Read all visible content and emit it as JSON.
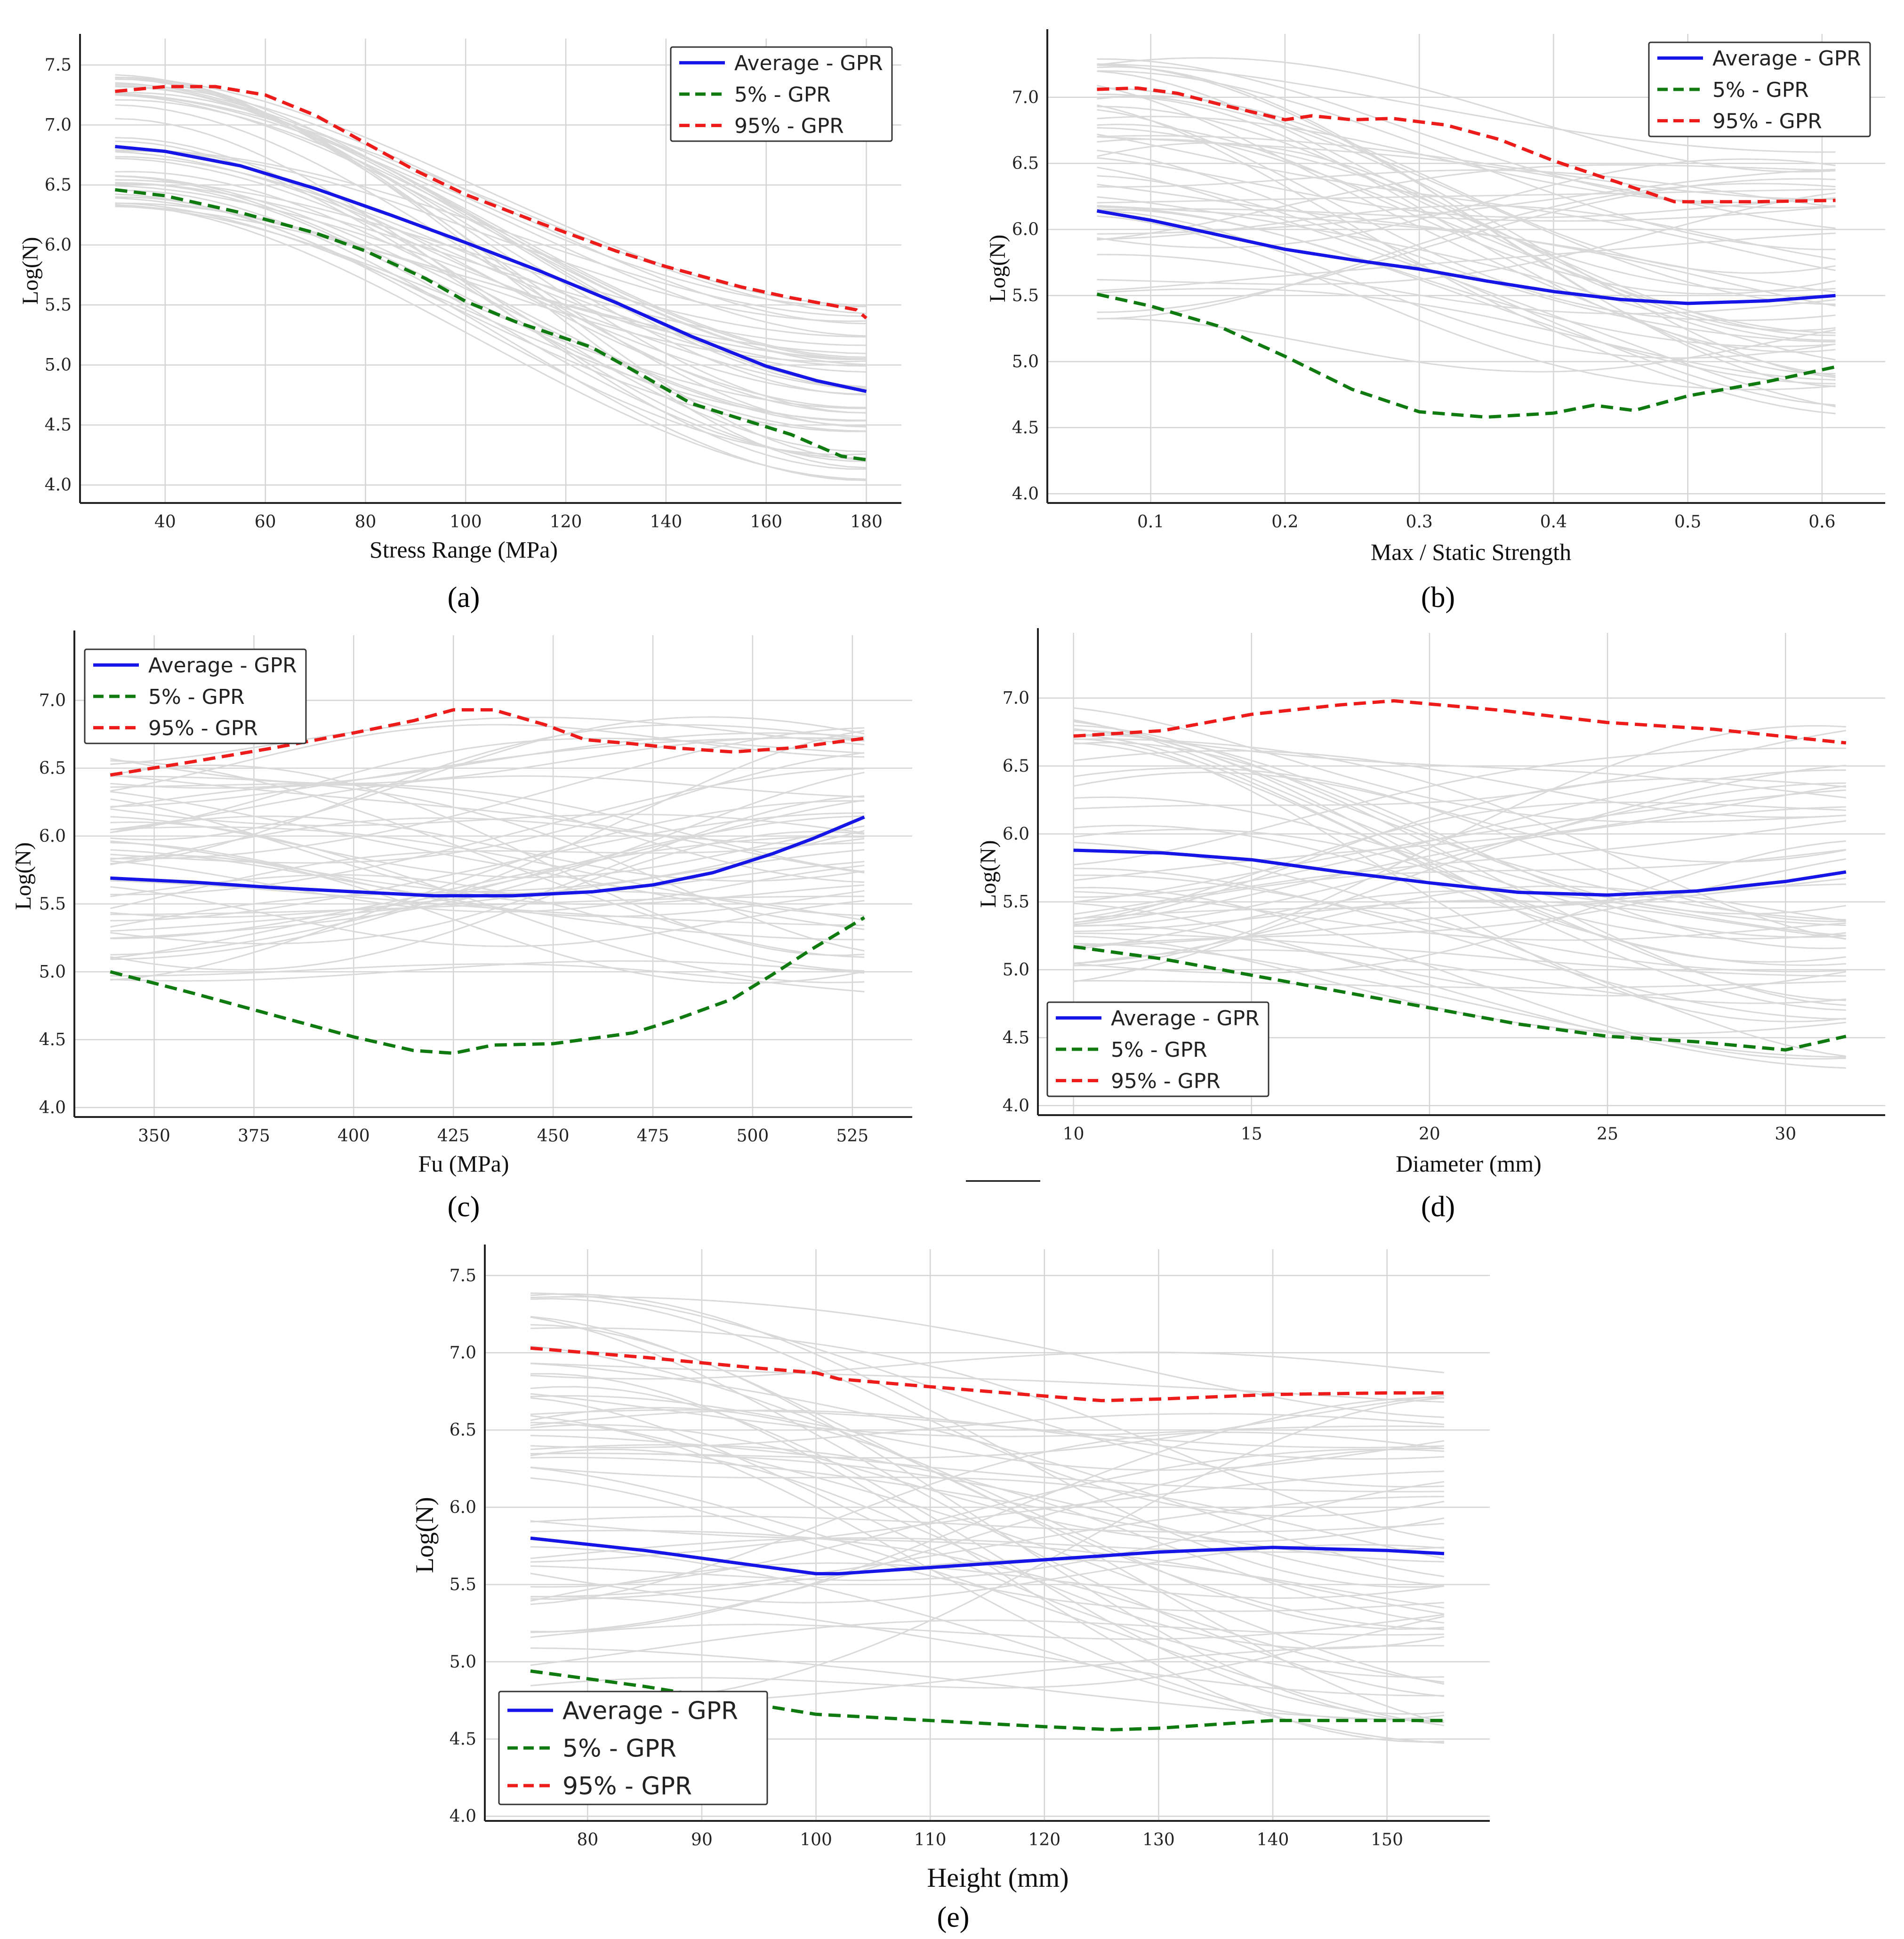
{
  "colors": {
    "average": "#1515e8",
    "p5": "#0f7a0f",
    "p95": "#ee1b1b",
    "samples": "#d9d9d9",
    "grid": "#d4d4d4",
    "axis": "#222222"
  },
  "chart_data": [
    {
      "id": "a",
      "type": "line",
      "caption": "(a)",
      "xlabel": "Stress Range (MPa)",
      "ylabel": "Log(N)",
      "xlim": [
        23,
        187
      ],
      "ylim": [
        3.85,
        7.72
      ],
      "xticks": [
        40,
        60,
        80,
        100,
        120,
        140,
        160,
        180
      ],
      "yticks": [
        4.0,
        4.5,
        5.0,
        5.5,
        6.0,
        6.5,
        7.0,
        7.5
      ],
      "legend_position": "top-right",
      "samples": {
        "count": 42,
        "y0_range": [
          6.3,
          7.5
        ],
        "y1_range": [
          4.0,
          5.5
        ],
        "wobble": 0.12
      },
      "series": [
        {
          "name": "Average - GPR",
          "style": "solid",
          "color": "average",
          "x": [
            30,
            40,
            55,
            70,
            85,
            100,
            115,
            130,
            145,
            160,
            170,
            180
          ],
          "y": [
            6.82,
            6.78,
            6.66,
            6.47,
            6.25,
            6.02,
            5.78,
            5.52,
            5.24,
            4.99,
            4.87,
            4.78
          ]
        },
        {
          "name": "5% - GPR",
          "style": "dashed",
          "color": "p5",
          "x": [
            30,
            40,
            55,
            70,
            80,
            92,
            100,
            110,
            125,
            135,
            145,
            155,
            165,
            175,
            180
          ],
          "y": [
            6.46,
            6.41,
            6.27,
            6.1,
            5.95,
            5.72,
            5.53,
            5.36,
            5.15,
            4.92,
            4.68,
            4.55,
            4.42,
            4.24,
            4.21
          ]
        },
        {
          "name": "95% - GPR",
          "style": "dashed",
          "color": "p95",
          "x": [
            30,
            40,
            50,
            60,
            70,
            80,
            90,
            100,
            115,
            130,
            140,
            155,
            165,
            178,
            180
          ],
          "y": [
            7.28,
            7.32,
            7.32,
            7.25,
            7.08,
            6.85,
            6.62,
            6.42,
            6.18,
            5.95,
            5.82,
            5.65,
            5.56,
            5.46,
            5.39
          ]
        }
      ]
    },
    {
      "id": "b",
      "type": "line",
      "caption": "(b)",
      "xlabel": "Max / Static Strength",
      "ylabel": "Log(N)",
      "xlim": [
        0.023,
        0.647
      ],
      "ylim": [
        3.93,
        7.48
      ],
      "xticks": [
        0.1,
        0.2,
        0.3,
        0.4,
        0.5,
        0.6
      ],
      "yticks": [
        4.0,
        4.5,
        5.0,
        5.5,
        6.0,
        6.5,
        7.0
      ],
      "legend_position": "top-right",
      "samples": {
        "count": 48,
        "y0_range": [
          5.3,
          7.3
        ],
        "y1_range": [
          4.6,
          6.6
        ],
        "wobble": 0.45
      },
      "series": [
        {
          "name": "Average - GPR",
          "style": "solid",
          "color": "average",
          "x": [
            0.06,
            0.1,
            0.15,
            0.2,
            0.25,
            0.3,
            0.35,
            0.4,
            0.45,
            0.5,
            0.56,
            0.61
          ],
          "y": [
            6.14,
            6.07,
            5.96,
            5.85,
            5.77,
            5.7,
            5.61,
            5.53,
            5.47,
            5.44,
            5.46,
            5.5
          ]
        },
        {
          "name": "5% - GPR",
          "style": "dashed",
          "color": "p5",
          "x": [
            0.06,
            0.1,
            0.15,
            0.2,
            0.25,
            0.3,
            0.35,
            0.4,
            0.43,
            0.46,
            0.5,
            0.56,
            0.61
          ],
          "y": [
            5.51,
            5.42,
            5.27,
            5.04,
            4.79,
            4.62,
            4.58,
            4.61,
            4.67,
            4.63,
            4.74,
            4.85,
            4.96
          ]
        },
        {
          "name": "95% - GPR",
          "style": "dashed",
          "color": "p95",
          "x": [
            0.06,
            0.09,
            0.12,
            0.15,
            0.2,
            0.22,
            0.25,
            0.28,
            0.32,
            0.36,
            0.4,
            0.45,
            0.49,
            0.55,
            0.61
          ],
          "y": [
            7.06,
            7.07,
            7.03,
            6.95,
            6.83,
            6.86,
            6.83,
            6.84,
            6.79,
            6.68,
            6.52,
            6.35,
            6.21,
            6.21,
            6.22
          ]
        }
      ]
    },
    {
      "id": "c",
      "type": "line",
      "caption": "(c)",
      "xlabel": "Fu (MPa)",
      "ylabel": "Log(N)",
      "xlim": [
        330,
        540
      ],
      "ylim": [
        3.93,
        7.48
      ],
      "xticks": [
        350,
        375,
        400,
        425,
        450,
        475,
        500,
        525
      ],
      "yticks": [
        4.0,
        4.5,
        5.0,
        5.5,
        6.0,
        6.5,
        7.0
      ],
      "legend_position": "top-left",
      "samples": {
        "count": 50,
        "y0_range": [
          4.9,
          6.6
        ],
        "y1_range": [
          4.8,
          6.8
        ],
        "wobble": 0.45
      },
      "series": [
        {
          "name": "Average - GPR",
          "style": "solid",
          "color": "average",
          "x": [
            339,
            360,
            380,
            400,
            420,
            440,
            460,
            475,
            490,
            505,
            515,
            528
          ],
          "y": [
            5.69,
            5.66,
            5.62,
            5.59,
            5.56,
            5.56,
            5.59,
            5.64,
            5.73,
            5.87,
            5.98,
            6.14
          ]
        },
        {
          "name": "5% - GPR",
          "style": "dashed",
          "color": "p5",
          "x": [
            339,
            360,
            380,
            400,
            415,
            425,
            435,
            450,
            460,
            470,
            480,
            495,
            505,
            515,
            528
          ],
          "y": [
            5.0,
            4.84,
            4.68,
            4.52,
            4.42,
            4.4,
            4.46,
            4.47,
            4.51,
            4.55,
            4.64,
            4.8,
            4.98,
            5.17,
            5.4
          ]
        },
        {
          "name": "95% - GPR",
          "style": "dashed",
          "color": "p95",
          "x": [
            339,
            360,
            380,
            400,
            415,
            425,
            435,
            448,
            458,
            470,
            480,
            495,
            510,
            528
          ],
          "y": [
            6.45,
            6.55,
            6.65,
            6.76,
            6.85,
            6.93,
            6.93,
            6.82,
            6.71,
            6.68,
            6.65,
            6.62,
            6.65,
            6.72
          ]
        }
      ]
    },
    {
      "id": "d",
      "type": "line",
      "caption": "(d)",
      "xlabel": "Diameter (mm)",
      "ylabel": "Log(N)",
      "xlim": [
        9.0,
        32.8
      ],
      "ylim": [
        3.93,
        7.48
      ],
      "xticks": [
        10,
        15,
        20,
        25,
        30
      ],
      "yticks": [
        4.0,
        4.5,
        5.0,
        5.5,
        6.0,
        6.5,
        7.0
      ],
      "legend_position": "bottom-left",
      "samples": {
        "count": 50,
        "y0_range": [
          4.8,
          7.0
        ],
        "y1_range": [
          4.2,
          6.8
        ],
        "wobble": 0.4
      },
      "series": [
        {
          "name": "Average - GPR",
          "style": "solid",
          "color": "average",
          "x": [
            10,
            12.5,
            15,
            17.5,
            20,
            22.5,
            25,
            27.5,
            30,
            31.7
          ],
          "y": [
            5.88,
            5.86,
            5.81,
            5.72,
            5.64,
            5.57,
            5.55,
            5.58,
            5.65,
            5.72
          ]
        },
        {
          "name": "5% - GPR",
          "style": "dashed",
          "color": "p5",
          "x": [
            10,
            12.5,
            15,
            17.5,
            20,
            22.5,
            25,
            27.5,
            30,
            31.7
          ],
          "y": [
            5.17,
            5.08,
            4.96,
            4.84,
            4.72,
            4.6,
            4.51,
            4.47,
            4.41,
            4.51
          ]
        },
        {
          "name": "95% - GPR",
          "style": "dashed",
          "color": "p95",
          "x": [
            10,
            12.5,
            15,
            17.5,
            19,
            22,
            25,
            28,
            31.7
          ],
          "y": [
            6.72,
            6.76,
            6.88,
            6.95,
            6.98,
            6.91,
            6.82,
            6.77,
            6.67
          ]
        }
      ]
    },
    {
      "id": "e",
      "type": "line",
      "caption": "(e)",
      "xlabel": "Height (mm)",
      "ylabel": "Log(N)",
      "xlim": [
        71,
        159
      ],
      "ylim": [
        3.97,
        7.67
      ],
      "xticks": [
        80,
        90,
        100,
        110,
        120,
        130,
        140,
        150
      ],
      "yticks": [
        4.0,
        4.5,
        5.0,
        5.5,
        6.0,
        6.5,
        7.0,
        7.5
      ],
      "legend_position": "bottom-left",
      "samples": {
        "count": 55,
        "y0_range": [
          4.7,
          7.45
        ],
        "y1_range": [
          4.4,
          6.95
        ],
        "wobble": 0.4
      },
      "series": [
        {
          "name": "Average - GPR",
          "style": "solid",
          "color": "average",
          "x": [
            75,
            85,
            95,
            100,
            102,
            110,
            120,
            130,
            140,
            150,
            155
          ],
          "y": [
            5.8,
            5.72,
            5.62,
            5.57,
            5.57,
            5.61,
            5.66,
            5.71,
            5.74,
            5.72,
            5.7
          ]
        },
        {
          "name": "5% - GPR",
          "style": "dashed",
          "color": "p5",
          "x": [
            75,
            85,
            95,
            100,
            110,
            120,
            126,
            130,
            140,
            150,
            155
          ],
          "y": [
            4.94,
            4.84,
            4.72,
            4.66,
            4.62,
            4.58,
            4.56,
            4.57,
            4.62,
            4.62,
            4.62
          ]
        },
        {
          "name": "95% - GPR",
          "style": "dashed",
          "color": "p95",
          "x": [
            75,
            85,
            95,
            100,
            102,
            110,
            120,
            125,
            130,
            140,
            150,
            155
          ],
          "y": [
            7.03,
            6.97,
            6.9,
            6.87,
            6.83,
            6.78,
            6.72,
            6.69,
            6.7,
            6.73,
            6.74,
            6.74
          ]
        }
      ]
    }
  ]
}
